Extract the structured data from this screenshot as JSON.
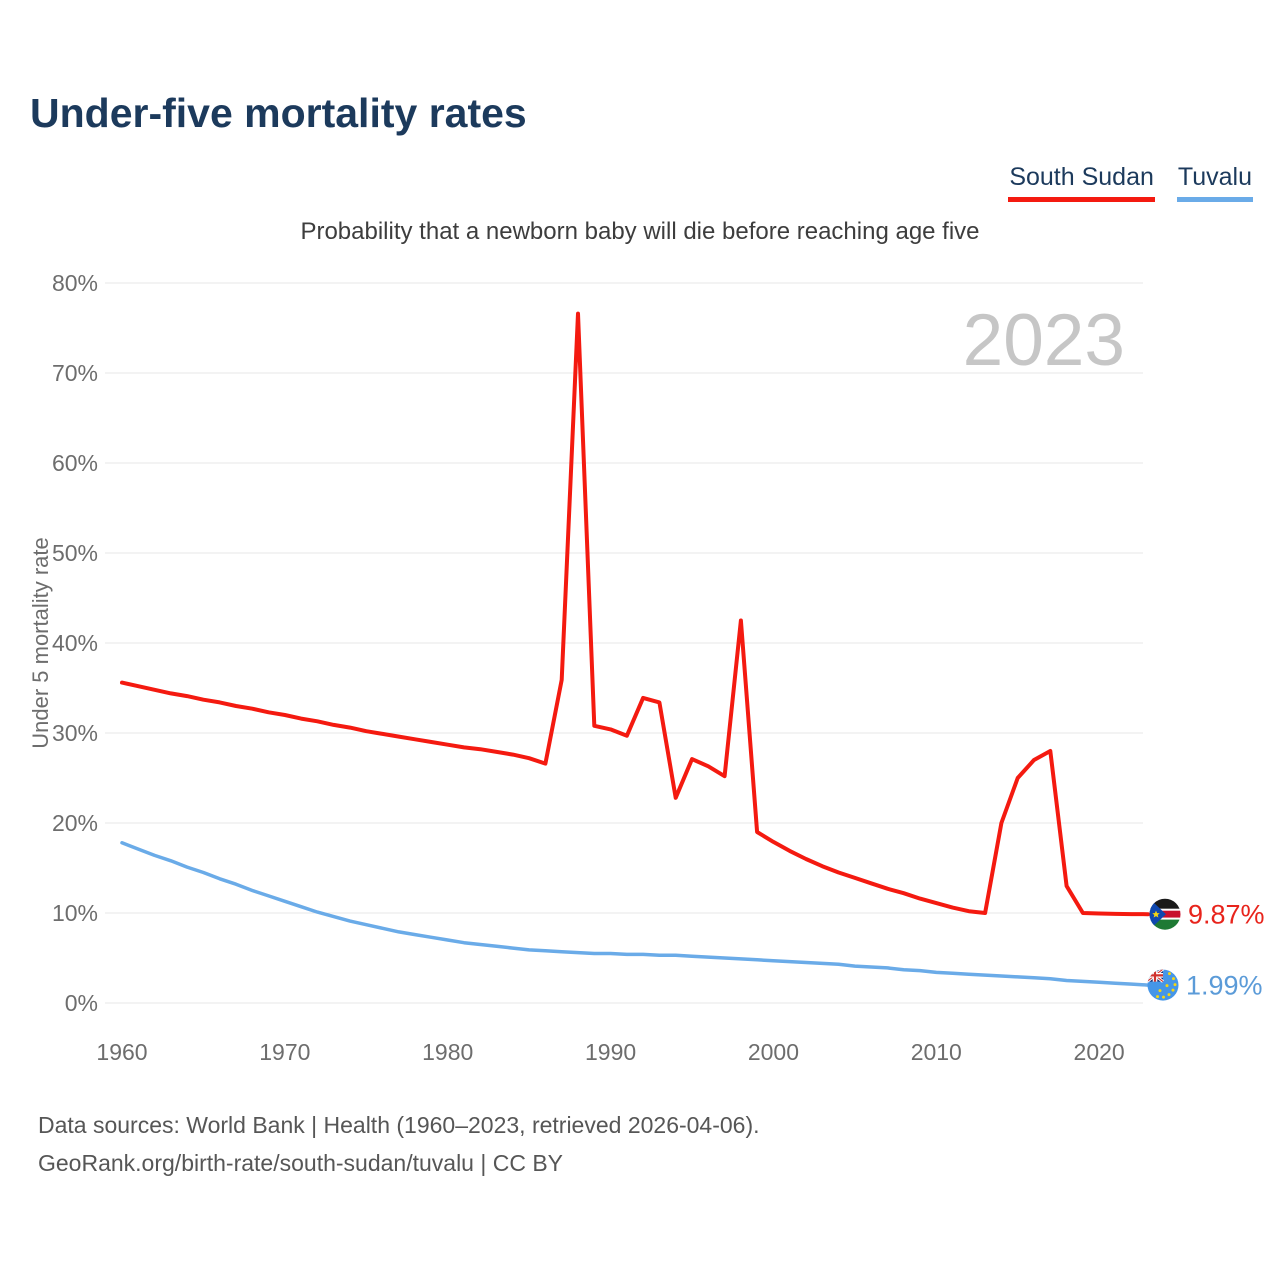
{
  "header": {
    "title": "Under-five mortality rates"
  },
  "legend": {
    "items": [
      {
        "label": "South Sudan",
        "color": "#f41a10"
      },
      {
        "label": "Tuvalu",
        "color": "#6aabe8"
      }
    ]
  },
  "chart": {
    "subtitle": "Probability that a newborn baby will die before reaching age five",
    "watermark": "2023",
    "end_labels": {
      "south_sudan": "9.87%",
      "tuvalu": "1.99%"
    }
  },
  "icons": [
    {
      "name": "south-sudan-flag-icon",
      "colors": {
        "black": "#1a1a1a",
        "red": "#c8102e",
        "green": "#1e7a34",
        "blue": "#0f47af",
        "star": "#f5d612"
      }
    },
    {
      "name": "tuvalu-flag-icon",
      "colors": {
        "field": "#4596e8",
        "jack_navy": "#1a2f6e",
        "jack_red": "#d0312d",
        "star": "#f5d612"
      }
    }
  ],
  "footer": {
    "line1": "Data sources: World Bank | Health (1960–2023, retrieved 2026-04-06).",
    "line2": "GeoRank.org/birth-rate/south-sudan/tuvalu | CC BY"
  },
  "chart_data": {
    "type": "line",
    "title": "Under-five mortality rates",
    "subtitle": "Probability that a newborn baby will die before reaching age five",
    "xlabel": "",
    "ylabel": "Under 5 mortality rate",
    "ylim": [
      0,
      80
    ],
    "xlim": [
      1960,
      2023
    ],
    "grid": "horizontal",
    "legend_position": "top-right",
    "y_tick_values": [
      0,
      10,
      20,
      30,
      40,
      50,
      60,
      70,
      80
    ],
    "y_tick_labels": [
      "0%",
      "10%",
      "20%",
      "30%",
      "40%",
      "50%",
      "60%",
      "70%",
      "80%"
    ],
    "x_tick_values": [
      1960,
      1970,
      1980,
      1990,
      2000,
      2010,
      2020
    ],
    "x_tick_labels": [
      "1960",
      "1970",
      "1980",
      "1990",
      "2000",
      "2010",
      "2020"
    ],
    "x": [
      1960,
      1961,
      1962,
      1963,
      1964,
      1965,
      1966,
      1967,
      1968,
      1969,
      1970,
      1971,
      1972,
      1973,
      1974,
      1975,
      1976,
      1977,
      1978,
      1979,
      1980,
      1981,
      1982,
      1983,
      1984,
      1985,
      1986,
      1987,
      1988,
      1989,
      1990,
      1991,
      1992,
      1993,
      1994,
      1995,
      1996,
      1997,
      1998,
      1999,
      2000,
      2001,
      2002,
      2003,
      2004,
      2005,
      2006,
      2007,
      2008,
      2009,
      2010,
      2011,
      2012,
      2013,
      2014,
      2015,
      2016,
      2017,
      2018,
      2019,
      2020,
      2021,
      2022,
      2023
    ],
    "series": [
      {
        "name": "South Sudan",
        "color": "#f41a10",
        "label_color": "#e8241c",
        "line_width": 4,
        "end_label": "9.87%",
        "flag_icon": "south-sudan-flag-icon",
        "values": [
          35.6,
          35.2,
          34.8,
          34.4,
          34.1,
          33.7,
          33.4,
          33.0,
          32.7,
          32.3,
          32.0,
          31.6,
          31.3,
          30.9,
          30.6,
          30.2,
          29.9,
          29.6,
          29.3,
          29.0,
          28.7,
          28.4,
          28.2,
          27.9,
          27.6,
          27.2,
          26.6,
          35.9,
          76.6,
          30.8,
          30.4,
          29.7,
          33.9,
          33.4,
          22.8,
          27.1,
          26.3,
          25.2,
          42.5,
          19.0,
          17.9,
          16.9,
          16.0,
          15.2,
          14.5,
          13.9,
          13.3,
          12.7,
          12.2,
          11.6,
          11.1,
          10.6,
          10.2,
          10.0,
          20.0,
          25.0,
          27.0,
          28.0,
          13.0,
          10.0,
          9.95,
          9.9,
          9.88,
          9.87
        ]
      },
      {
        "name": "Tuvalu",
        "color": "#6aabe8",
        "label_color": "#5b9bd8",
        "line_width": 3.5,
        "end_label": "1.99%",
        "flag_icon": "tuvalu-flag-icon",
        "values": [
          17.8,
          17.1,
          16.4,
          15.8,
          15.1,
          14.5,
          13.8,
          13.2,
          12.5,
          11.9,
          11.3,
          10.7,
          10.1,
          9.6,
          9.1,
          8.7,
          8.3,
          7.9,
          7.6,
          7.3,
          7.0,
          6.7,
          6.5,
          6.3,
          6.1,
          5.9,
          5.8,
          5.7,
          5.6,
          5.5,
          5.5,
          5.4,
          5.4,
          5.3,
          5.3,
          5.2,
          5.1,
          5.0,
          4.9,
          4.8,
          4.7,
          4.6,
          4.5,
          4.4,
          4.3,
          4.1,
          4.0,
          3.9,
          3.7,
          3.6,
          3.4,
          3.3,
          3.2,
          3.1,
          3.0,
          2.9,
          2.8,
          2.7,
          2.5,
          2.4,
          2.3,
          2.2,
          2.1,
          1.99
        ]
      }
    ]
  }
}
